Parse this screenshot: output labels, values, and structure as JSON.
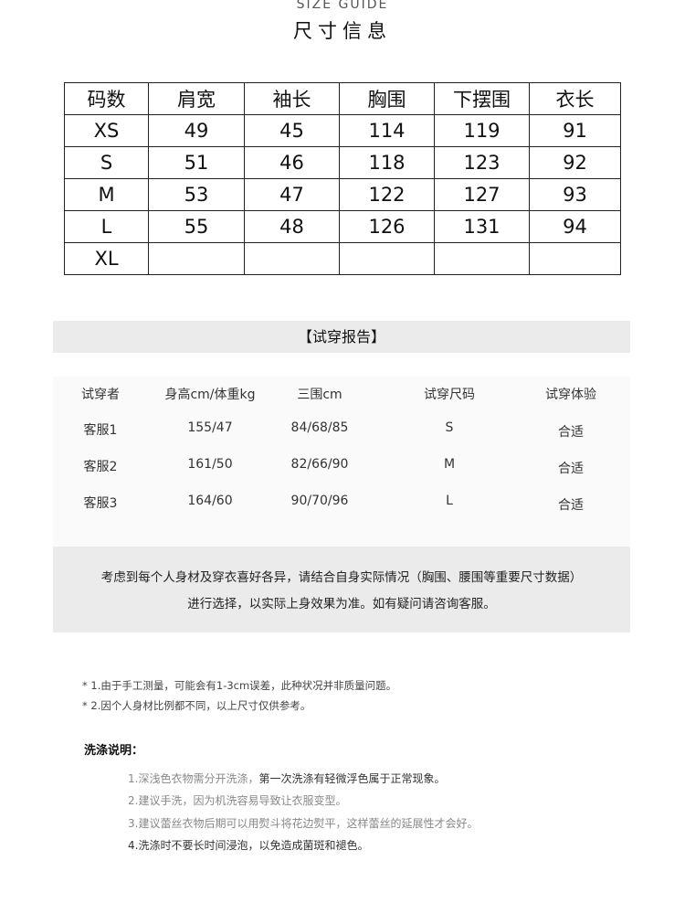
{
  "header": {
    "en_title": "SIZE GUIDE",
    "cn_title": "尺寸信息"
  },
  "size_table": {
    "headers": [
      "码数",
      "肩宽",
      "袖长",
      "胸围",
      "下摆围",
      "衣长"
    ],
    "rows": [
      [
        "XS",
        "49",
        "45",
        "114",
        "119",
        "91"
      ],
      [
        "S",
        "51",
        "46",
        "118",
        "123",
        "92"
      ],
      [
        "M",
        "53",
        "47",
        "122",
        "127",
        "93"
      ],
      [
        "L",
        "55",
        "48",
        "126",
        "131",
        "94"
      ],
      [
        "XL",
        "",
        "",
        "",
        "",
        ""
      ]
    ]
  },
  "trial": {
    "title": "【试穿报告】",
    "headers": [
      "试穿者",
      "身高cm/体重kg",
      "三围cm",
      "试穿尺码",
      "试穿体验"
    ],
    "rows": [
      [
        "客服1",
        "155/47",
        "84/68/85",
        "S",
        "合适"
      ],
      [
        "客服2",
        "161/50",
        "82/66/90",
        "M",
        "合适"
      ],
      [
        "客服3",
        "164/60",
        "90/70/96",
        "L",
        "合适"
      ]
    ]
  },
  "notice": {
    "line1": "考虑到每个人身材及穿衣喜好各异，请结合自身实际情况（胸围、腰围等重要尺寸数据）",
    "line2": "进行选择，以实际上身效果为准。如有疑问请咨询客服。"
  },
  "notes": [
    "* 1.由于手工测量，可能会有1-3cm误差，此种状况并非质量问题。",
    "* 2.因个人身材比例都不同，以上尺寸仅供参考。"
  ],
  "wash": {
    "title": "洗涤说明：",
    "item1a": "1.深浅色衣物需分开洗涤，",
    "item1b": "第一次洗涤有轻微浮色属于正常现象。",
    "item2": "2.建议手洗，因为机洗容易导致让衣服变型。",
    "item3": "3.建议蕾丝衣物后期可以用熨斗将花边熨平，这样蕾丝的延展性才会好。",
    "item4": "4.洗涤时不要长时间浸泡，以免造成菌斑和褪色。"
  }
}
